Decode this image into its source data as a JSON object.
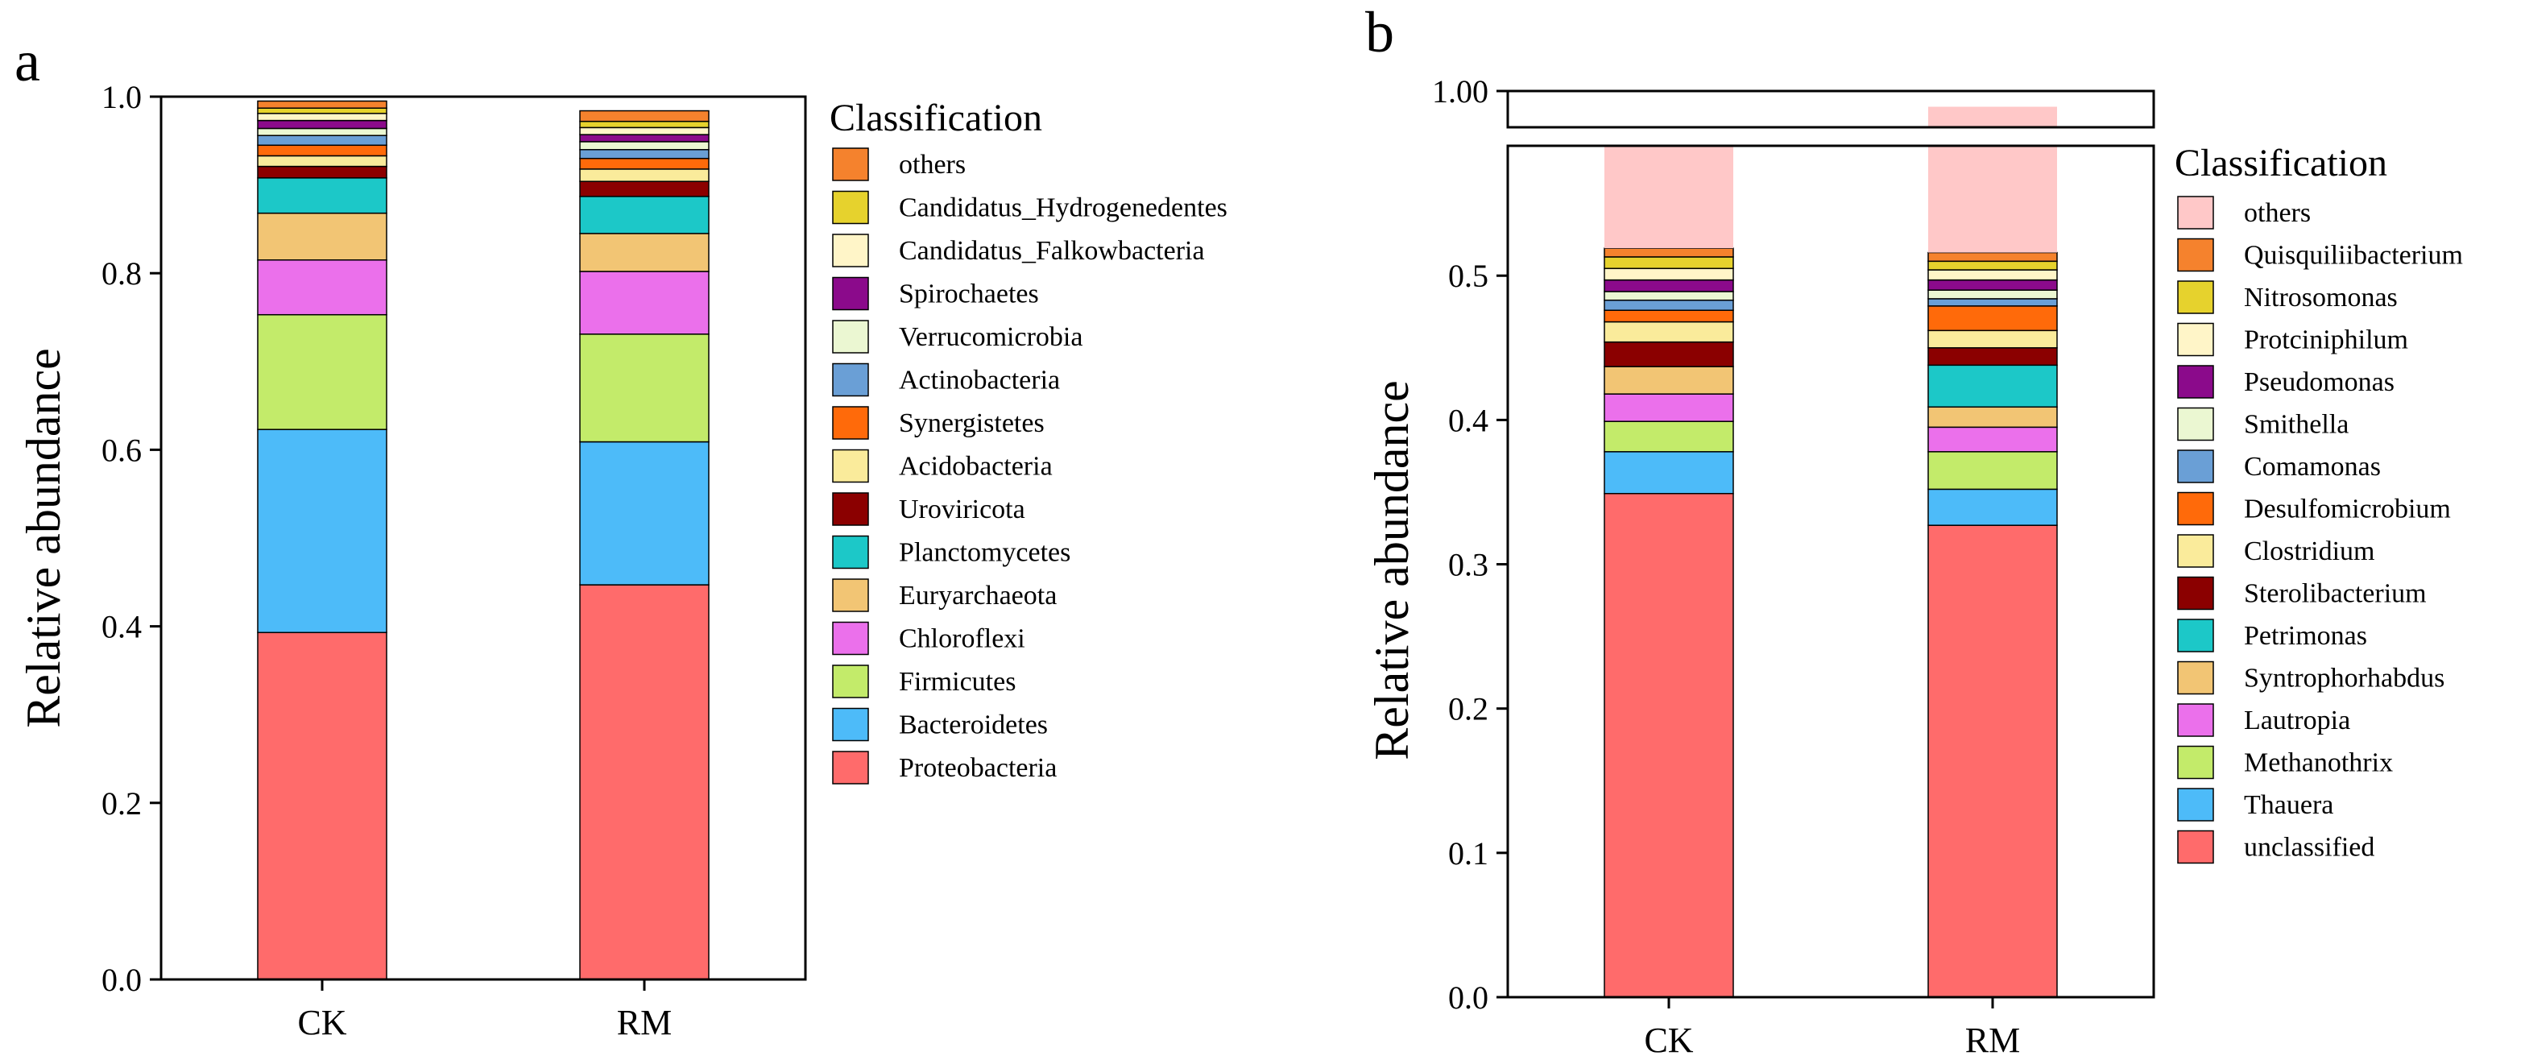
{
  "chart_data": [
    {
      "panel_label": "a",
      "type": "bar",
      "stacked": true,
      "title": "",
      "xlabel": "",
      "ylabel": "Relative abundance",
      "ylim": [
        0,
        1.0
      ],
      "yticks": [
        "0.0",
        "0.2",
        "0.4",
        "0.6",
        "0.8",
        "1.0"
      ],
      "categories": [
        "CK",
        "RM"
      ],
      "legend_title": "Classification",
      "legend_position": "right",
      "series": [
        {
          "name": "Proteobacteria",
          "color": "#FF6B6B",
          "values": [
            0.393,
            0.447
          ]
        },
        {
          "name": "Bacteroidetes",
          "color": "#4DBBF9",
          "values": [
            0.23,
            0.162
          ]
        },
        {
          "name": "Firmicutes",
          "color": "#C3EB6A",
          "values": [
            0.13,
            0.122
          ]
        },
        {
          "name": "Chloroflexi",
          "color": "#EB70EB",
          "values": [
            0.062,
            0.071
          ]
        },
        {
          "name": "Euryarchaeota",
          "color": "#F2C574",
          "values": [
            0.053,
            0.043
          ]
        },
        {
          "name": "Planctomycetes",
          "color": "#1CC8C8",
          "values": [
            0.04,
            0.042
          ]
        },
        {
          "name": "Uroviricota",
          "color": "#8B0000",
          "values": [
            0.013,
            0.017
          ]
        },
        {
          "name": "Acidobacteria",
          "color": "#FAEB9B",
          "values": [
            0.012,
            0.014
          ]
        },
        {
          "name": "Synergistetes",
          "color": "#FF6A0A",
          "values": [
            0.012,
            0.012
          ]
        },
        {
          "name": "Actinobacteria",
          "color": "#6A9FD6",
          "values": [
            0.011,
            0.01
          ]
        },
        {
          "name": "Verrucomicrobia",
          "color": "#EBF7D2",
          "values": [
            0.008,
            0.009
          ]
        },
        {
          "name": "Spirochaetes",
          "color": "#8B0A8B",
          "values": [
            0.009,
            0.008
          ]
        },
        {
          "name": "Candidatus_Falkowbacteria",
          "color": "#FFF5C8",
          "values": [
            0.008,
            0.008
          ]
        },
        {
          "name": "Candidatus_Hydrogenedentes",
          "color": "#E6D22D",
          "values": [
            0.006,
            0.007
          ]
        },
        {
          "name": "others",
          "color": "#F5822D",
          "values": [
            0.008,
            0.012
          ]
        }
      ]
    },
    {
      "panel_label": "b",
      "type": "bar",
      "stacked": true,
      "broken_axis": true,
      "title": "",
      "xlabel": "",
      "ylabel": "Relative abundance",
      "ylim_lower": [
        0,
        0.59
      ],
      "ylim_upper": [
        0.97,
        1.0
      ],
      "yticks_lower": [
        "0.0",
        "0.1",
        "0.2",
        "0.3",
        "0.4",
        "0.5"
      ],
      "yticks_upper": [
        "1.00"
      ],
      "categories": [
        "CK",
        "RM"
      ],
      "legend_title": "Classification",
      "legend_position": "right",
      "series": [
        {
          "name": "unclassified",
          "color": "#FF6B6B",
          "values": [
            0.349,
            0.327
          ]
        },
        {
          "name": "Thauera",
          "color": "#4DBBF9",
          "values": [
            0.029,
            0.025
          ]
        },
        {
          "name": "Methanothrix",
          "color": "#C3EB6A",
          "values": [
            0.021,
            0.026
          ]
        },
        {
          "name": "Lautropia",
          "color": "#EB70EB",
          "values": [
            0.019,
            0.017
          ]
        },
        {
          "name": "Syntrophorhabdus",
          "color": "#F2C574",
          "values": [
            0.019,
            0.014
          ]
        },
        {
          "name": "Petrimonas",
          "color": "#1CC8C8",
          "values": [
            0.0,
            0.029
          ]
        },
        {
          "name": "Sterolibacterium",
          "color": "#8B0000",
          "values": [
            0.017,
            0.012
          ]
        },
        {
          "name": "Clostridium",
          "color": "#FAEB9B",
          "values": [
            0.014,
            0.012
          ]
        },
        {
          "name": "Desulfomicrobium",
          "color": "#FF6A0A",
          "values": [
            0.008,
            0.017
          ]
        },
        {
          "name": "Comamonas",
          "color": "#6A9FD6",
          "values": [
            0.007,
            0.005
          ]
        },
        {
          "name": "Smithella",
          "color": "#EBF7D2",
          "values": [
            0.006,
            0.006
          ]
        },
        {
          "name": "Pseudomonas",
          "color": "#8B0A8B",
          "values": [
            0.008,
            0.007
          ]
        },
        {
          "name": "Protciniphilum",
          "color": "#FFF5C8",
          "values": [
            0.008,
            0.007
          ]
        },
        {
          "name": "Nitrosomonas",
          "color": "#E6D22D",
          "values": [
            0.008,
            0.006
          ]
        },
        {
          "name": "Quisquiliibacterium",
          "color": "#F5822D",
          "values": [
            0.006,
            0.006
          ]
        },
        {
          "name": "others",
          "color": "#FFC8C8",
          "values": [
            0.432,
            0.471
          ]
        }
      ]
    }
  ]
}
